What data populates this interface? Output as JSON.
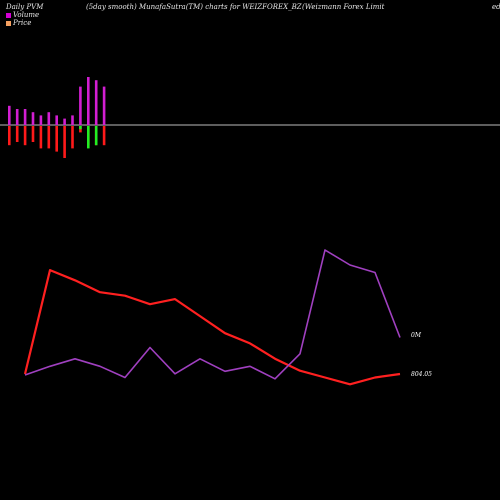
{
  "header": {
    "left": "Daily PVM",
    "mid": "(5day smooth) MunafaSutra(TM) charts for WEIZFOREX_BZ",
    "right": "(Weizmann  Forex Limit",
    "far_right": "ed"
  },
  "legend": [
    {
      "label": "Volume",
      "color": "#d400d4"
    },
    {
      "label": "Price",
      "color": "#f5a060"
    }
  ],
  "chart_data": [
    {
      "type": "bar",
      "title": "Daily PVM",
      "baseline_color": "#bbbbbb",
      "series": [
        {
          "name": "positive",
          "color": "#d21ed2",
          "values": [
            6,
            5,
            5,
            4,
            3,
            4,
            3,
            2,
            3,
            12,
            15,
            14,
            12
          ]
        },
        {
          "name": "negative",
          "color": "#ff1a1a",
          "values": [
            -6,
            -5,
            -6,
            -5,
            -7,
            -7,
            -8,
            -10,
            -7,
            -2,
            -6,
            -6,
            -6
          ]
        },
        {
          "name": "negative-last",
          "color": "#22ee22",
          "values": [
            0,
            0,
            0,
            0,
            0,
            0,
            0,
            0,
            0,
            -1,
            -7,
            -6,
            0
          ]
        }
      ]
    },
    {
      "type": "line",
      "x": [
        1,
        2,
        3,
        4,
        5,
        6,
        7,
        8,
        9,
        10,
        11,
        12,
        13,
        14,
        15,
        16
      ],
      "series": [
        {
          "name": "Volume",
          "color": "#a040c0",
          "values": [
            0.0,
            0.7,
            1.3,
            0.7,
            -0.2,
            2.2,
            0.1,
            1.3,
            0.3,
            0.7,
            -0.3,
            1.7,
            10.0,
            8.8,
            8.2,
            3.0
          ],
          "end_label": "0M"
        },
        {
          "name": "Price",
          "color": "#ff2020",
          "values": [
            804.05,
            865.0,
            859.0,
            852.0,
            850.0,
            845.0,
            848.0,
            838.0,
            828.0,
            822.0,
            813.0,
            806.0,
            802.0,
            798.0,
            802.0,
            804.05
          ],
          "end_label": "804.05"
        }
      ]
    }
  ]
}
